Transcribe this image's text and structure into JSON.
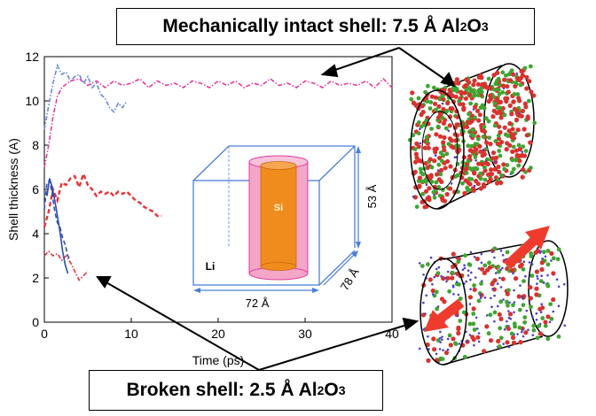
{
  "callouts": {
    "top": {
      "text": "Mechanically intact shell: 7.5 Å Al",
      "sub": "2",
      "mid": "O",
      "sub2": "3"
    },
    "bottom": {
      "text": "Broken shell: 2.5 Å Al",
      "sub": "2",
      "mid": "O",
      "sub2": "3"
    }
  },
  "inset": {
    "core_label": "Si",
    "medium_label": "Li",
    "dim_width": "72 Å",
    "dim_height": "53 Å",
    "dim_depth": "78 Å"
  },
  "colors": {
    "red": "#e8323a",
    "blue": "#2b4db8",
    "pink": "#e13ca0",
    "lightblue": "#6a88d6",
    "frame": "#4a7fd8",
    "shell_pink": "#f3a6c8",
    "core_orange": "#f08c1e"
  },
  "chart_data": {
    "type": "line",
    "title": "",
    "xlabel": "Time (ps)",
    "ylabel": "Shell thickness (A)",
    "xlim": [
      0,
      40
    ],
    "ylim": [
      0,
      12
    ],
    "xticks": [
      "0",
      "10",
      "20",
      "30",
      "40"
    ],
    "yticks": [
      "0",
      "2",
      "4",
      "6",
      "8",
      "10",
      "12"
    ],
    "grid": false,
    "series": [
      {
        "color": "#e13ca0",
        "style": "dashdot",
        "x": [
          0,
          0.5,
          1,
          1.5,
          2,
          3,
          4,
          5,
          6,
          7,
          8,
          9,
          10,
          11,
          12,
          13,
          14,
          15,
          16,
          17,
          18,
          19,
          20,
          21,
          22,
          23,
          24,
          25,
          26,
          27,
          28,
          29,
          30,
          31,
          32,
          33,
          34,
          35,
          36,
          37,
          38,
          39,
          40
        ],
        "y": [
          7.0,
          8.0,
          9.3,
          10.2,
          10.6,
          10.9,
          11.0,
          10.7,
          10.9,
          10.6,
          10.9,
          10.7,
          10.8,
          11.0,
          10.6,
          10.9,
          10.7,
          10.8,
          10.6,
          10.9,
          10.8,
          10.6,
          10.9,
          10.7,
          10.9,
          10.6,
          10.8,
          10.7,
          11.0,
          10.7,
          10.8,
          10.6,
          10.9,
          10.8,
          10.6,
          10.9,
          10.7,
          10.8,
          10.7,
          10.9,
          10.6,
          11.0,
          10.6
        ]
      },
      {
        "color": "#6a88d6",
        "style": "dashdot",
        "x": [
          0,
          0.5,
          1,
          1.5,
          2,
          2.5,
          3,
          3.5,
          4,
          4.5,
          5,
          5.5,
          6,
          6.5,
          7,
          7.5,
          8,
          8.5,
          9,
          9.5
        ],
        "y": [
          8.7,
          9.8,
          10.8,
          11.6,
          11.2,
          11.3,
          10.9,
          11.1,
          11.2,
          10.8,
          11.1,
          10.6,
          10.8,
          10.3,
          10.1,
          9.7,
          9.5,
          9.9,
          9.7,
          10.0
        ]
      },
      {
        "color": "#e8323a",
        "style": "dashed",
        "x": [
          0,
          0.5,
          1,
          1.5,
          2,
          2.5,
          3,
          3.5,
          4,
          4.5,
          5,
          5.5,
          6,
          6.5,
          7,
          7.5,
          8,
          8.5,
          9,
          9.5,
          10,
          10.5,
          11,
          11.5,
          12,
          12.5,
          13,
          13.5
        ],
        "y": [
          4.3,
          5.0,
          6.0,
          5.5,
          6.3,
          6.2,
          6.5,
          6.6,
          6.1,
          6.7,
          6.2,
          6.0,
          5.7,
          5.9,
          5.8,
          5.9,
          5.7,
          5.9,
          5.8,
          5.9,
          5.7,
          5.5,
          5.4,
          5.2,
          5.1,
          5.0,
          4.8,
          4.8
        ]
      },
      {
        "color": "#e8323a",
        "style": "dashdot",
        "x": [
          0,
          0.5,
          1,
          1.5,
          2,
          2.5,
          3,
          3.5,
          4,
          4.5,
          5
        ],
        "y": [
          3.0,
          3.2,
          3.0,
          3.1,
          2.8,
          3.0,
          2.7,
          2.3,
          1.9,
          2.1,
          2.3
        ]
      },
      {
        "color": "#2b4db8",
        "style": "dashed",
        "x": [
          0,
          0.3,
          0.6,
          0.9,
          1.2,
          1.5,
          1.8,
          2.1,
          2.4,
          2.7,
          3.0
        ],
        "y": [
          5.1,
          6.3,
          6.4,
          5.8,
          5.0,
          4.5,
          4.3,
          3.8,
          3.5,
          3.0,
          2.8
        ]
      },
      {
        "color": "#2b4db8",
        "style": "solid",
        "x": [
          0.3,
          0.6,
          0.9,
          1.2,
          1.5,
          1.8,
          2.1,
          2.4,
          2.7
        ],
        "y": [
          5.7,
          6.5,
          6.1,
          5.5,
          4.8,
          4.1,
          3.2,
          2.6,
          2.2
        ]
      }
    ]
  }
}
